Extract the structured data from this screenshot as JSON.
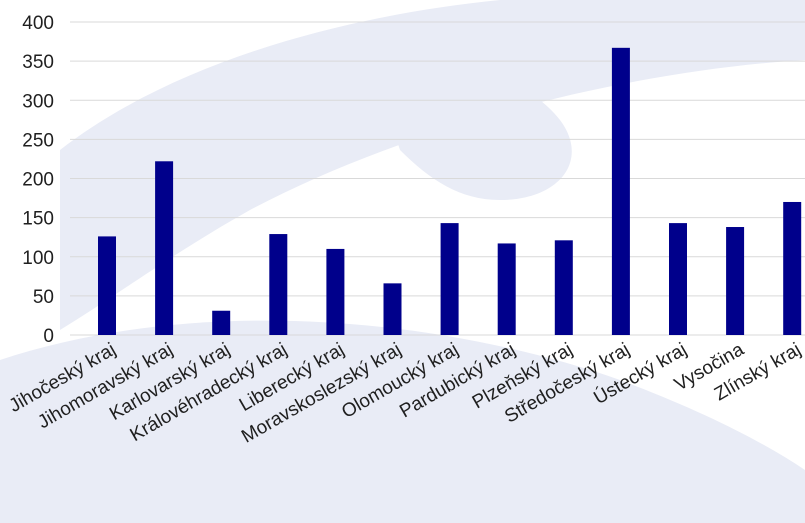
{
  "chart_data": {
    "type": "bar",
    "categories": [
      "Jihočeský kraj",
      "Jihomoravský kraj",
      "Karlovarský kraj",
      "Královéhradecký kraj",
      "Liberecký kraj",
      "Moravskoslezský kraj",
      "Olomoucký kraj",
      "Pardubický kraj",
      "Plzeňský kraj",
      "Středočeský kraj",
      "Ústecký kraj",
      "Vysočina",
      "Zlínský kraj"
    ],
    "values": [
      126,
      222,
      31,
      129,
      110,
      66,
      143,
      117,
      121,
      367,
      143,
      138,
      170
    ],
    "yticks": [
      "0",
      "50",
      "100",
      "150",
      "200",
      "250",
      "300",
      "350",
      "400"
    ],
    "ylim": [
      0,
      400
    ],
    "grid": true,
    "legend": "none",
    "bar_color": "#00008b",
    "title": "",
    "xlabel": "",
    "ylabel": ""
  }
}
